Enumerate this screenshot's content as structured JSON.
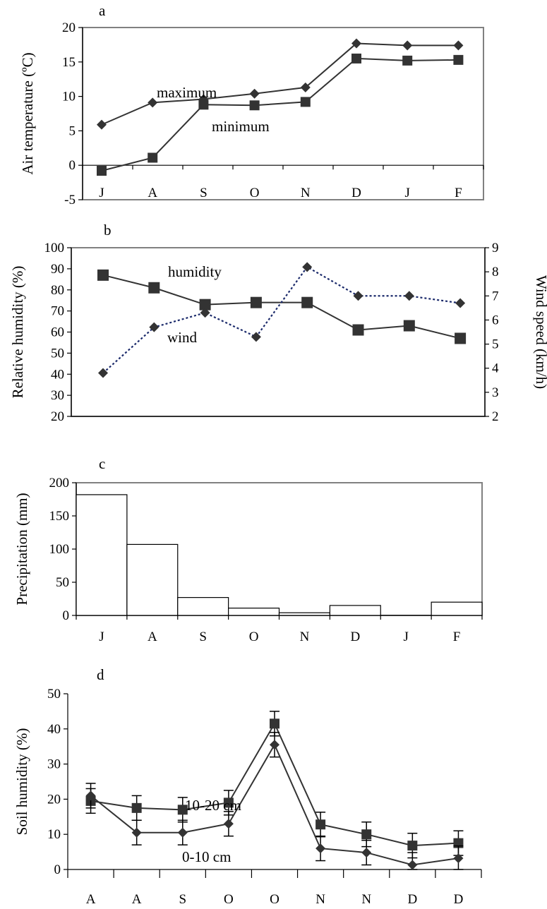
{
  "chart_data": [
    {
      "panel": "a",
      "type": "line",
      "categories": [
        "J",
        "A",
        "S",
        "O",
        "N",
        "D",
        "J",
        "F"
      ],
      "ylabel": "Air temperature (ºC)",
      "ylim": [
        -5,
        20
      ],
      "yticks": [
        -5,
        0,
        5,
        10,
        15,
        20
      ],
      "grid": false,
      "series": [
        {
          "name": "maximum",
          "marker": "diamond",
          "values": [
            5.9,
            9.1,
            9.6,
            10.4,
            11.3,
            17.7,
            17.4,
            17.4
          ]
        },
        {
          "name": "minimum",
          "marker": "square",
          "values": [
            -0.8,
            1.1,
            8.8,
            8.7,
            9.2,
            15.5,
            15.2,
            15.3
          ]
        }
      ]
    },
    {
      "panel": "b",
      "type": "line",
      "categories": [
        "J",
        "A",
        "S",
        "O",
        "N",
        "D",
        "J",
        "F"
      ],
      "ylabel": "Relative humidity (%)",
      "ylim": [
        20,
        100
      ],
      "yticks": [
        20,
        30,
        40,
        50,
        60,
        70,
        80,
        90,
        100
      ],
      "y2label": "Wind speed (km/h)",
      "y2lim": [
        2,
        9
      ],
      "y2ticks": [
        2,
        3,
        4,
        5,
        6,
        7,
        8,
        9
      ],
      "series": [
        {
          "name": "humidity",
          "marker": "square",
          "axis": "left",
          "values": [
            87,
            81,
            73,
            74,
            74,
            61,
            63,
            57
          ]
        },
        {
          "name": "wind",
          "marker": "diamond",
          "axis": "right",
          "style": "dotted",
          "values": [
            3.8,
            5.7,
            6.3,
            5.3,
            8.2,
            7.0,
            7.0,
            6.7
          ]
        }
      ]
    },
    {
      "panel": "c",
      "type": "bar",
      "categories": [
        "J",
        "A",
        "S",
        "O",
        "N",
        "D",
        "J",
        "F"
      ],
      "ylabel": "Precipitation (mm)",
      "ylim": [
        0,
        200
      ],
      "yticks": [
        0,
        50,
        100,
        150,
        200
      ],
      "values": [
        182,
        107,
        27,
        11,
        4,
        15,
        0,
        20
      ]
    },
    {
      "panel": "d",
      "type": "line",
      "categories": [
        "A",
        "A",
        "S",
        "O",
        "O",
        "N",
        "N",
        "D",
        "D"
      ],
      "ylabel": "Soil humidity (%)",
      "ylim": [
        0,
        50
      ],
      "yticks": [
        0,
        10,
        20,
        30,
        40,
        50
      ],
      "series": [
        {
          "name": "10-20 cm",
          "marker": "square",
          "values": [
            19.5,
            17.5,
            17.0,
            19.0,
            41.5,
            12.8,
            10.0,
            6.8,
            7.5
          ],
          "errors": [
            3.5,
            3.5,
            3.5,
            3.5,
            3.5,
            3.5,
            3.5,
            3.5,
            3.5
          ]
        },
        {
          "name": "0-10 cm",
          "marker": "diamond",
          "values": [
            21.0,
            10.5,
            10.5,
            13.0,
            35.5,
            6.0,
            4.8,
            1.3,
            3.2
          ],
          "errors": [
            3.5,
            3.5,
            3.5,
            3.5,
            3.5,
            3.5,
            3.5,
            3.5,
            3.5
          ]
        }
      ]
    }
  ]
}
